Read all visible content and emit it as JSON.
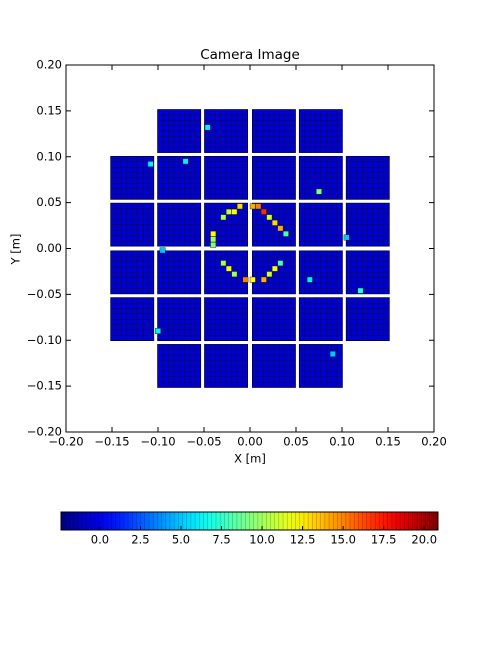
{
  "chart_data": {
    "type": "camera",
    "title": "Camera Image",
    "xlabel": "X [m]",
    "ylabel": "Y [m]",
    "xlim": [
      -0.2,
      0.2
    ],
    "ylim": [
      -0.2,
      0.2
    ],
    "xticks": [
      {
        "value": -0.2,
        "label": "−0.20"
      },
      {
        "value": -0.15,
        "label": "−0.15"
      },
      {
        "value": -0.1,
        "label": "−0.10"
      },
      {
        "value": -0.05,
        "label": "−0.05"
      },
      {
        "value": 0,
        "label": "0.00"
      },
      {
        "value": 0.05,
        "label": "0.05"
      },
      {
        "value": 0.1,
        "label": "0.10"
      },
      {
        "value": 0.15,
        "label": "0.15"
      },
      {
        "value": 0.2,
        "label": "0.20"
      }
    ],
    "yticks": [
      {
        "value": -0.2,
        "label": "−0.20"
      },
      {
        "value": -0.15,
        "label": "−0.15"
      },
      {
        "value": -0.1,
        "label": "−0.10"
      },
      {
        "value": -0.05,
        "label": "−0.05"
      },
      {
        "value": 0,
        "label": "0.00"
      },
      {
        "value": 0.05,
        "label": "0.05"
      },
      {
        "value": 0.1,
        "label": "0.10"
      },
      {
        "value": 0.15,
        "label": "0.15"
      },
      {
        "value": 0.2,
        "label": "0.20"
      }
    ],
    "module_size": 0.047,
    "pixels_per_side": 8,
    "modules": {
      "x": [
        -0.077,
        -0.026,
        0.026,
        0.077,
        -0.128,
        -0.077,
        -0.026,
        0.026,
        0.077,
        0.128,
        -0.128,
        -0.077,
        -0.026,
        0.026,
        0.077,
        0.128,
        -0.128,
        -0.077,
        -0.026,
        0.026,
        0.077,
        0.128,
        -0.128,
        -0.077,
        -0.026,
        0.026,
        0.077,
        0.128,
        -0.077,
        -0.026,
        0.026,
        0.077
      ],
      "y": [
        0.128,
        0.128,
        0.128,
        0.128,
        0.077,
        0.077,
        0.077,
        0.077,
        0.077,
        0.077,
        0.026,
        0.026,
        0.026,
        0.026,
        0.026,
        0.026,
        -0.026,
        -0.026,
        -0.026,
        -0.026,
        -0.026,
        -0.026,
        -0.077,
        -0.077,
        -0.077,
        -0.077,
        -0.077,
        -0.077,
        -0.128,
        -0.128,
        -0.128,
        -0.128
      ],
      "values": [
        -0.5,
        -0.5,
        -0.5,
        -0.5,
        -0.5,
        -0.5,
        -0.5,
        -0.5,
        -0.5,
        -0.5,
        -0.5,
        -0.5,
        -0.5,
        -0.5,
        -0.5,
        -0.5,
        -0.5,
        -0.5,
        -0.5,
        -0.5,
        -0.5,
        -0.5,
        -0.5,
        -0.5,
        -0.5,
        -0.5,
        -0.5,
        -0.5,
        -0.5,
        -0.5,
        -0.5,
        -0.5
      ]
    },
    "hot_pixels": {
      "x": [
        -0.011,
        -0.017,
        -0.023,
        -0.029,
        0.003,
        0.009,
        0.015,
        0.021,
        0.027,
        0.033,
        0.039,
        -0.04,
        -0.04,
        -0.04,
        -0.029,
        -0.023,
        -0.017,
        -0.005,
        0.003,
        0.015,
        0.021,
        0.027,
        0.033,
        -0.108,
        0.075,
        -0.095,
        0.065,
        0.12,
        -0.046,
        0.105,
        -0.1,
        0.09,
        -0.07
      ],
      "y": [
        0.046,
        0.04,
        0.04,
        0.034,
        0.046,
        0.046,
        0.04,
        0.034,
        0.028,
        0.022,
        0.016,
        0.016,
        0.01,
        0.004,
        -0.016,
        -0.022,
        -0.028,
        -0.034,
        -0.034,
        -0.034,
        -0.028,
        -0.022,
        -0.016,
        0.092,
        0.062,
        -0.002,
        -0.034,
        -0.046,
        0.132,
        0.012,
        -0.09,
        -0.115,
        0.095
      ],
      "values": [
        13,
        12,
        11,
        10,
        14,
        15,
        17,
        11,
        13,
        14,
        8,
        12,
        10,
        9,
        10,
        12,
        10,
        15,
        12,
        14,
        11,
        12,
        8,
        6,
        9,
        5,
        6,
        7,
        6,
        5,
        6,
        5,
        6
      ]
    },
    "clim": [
      -2.4,
      20.85
    ],
    "cticks": [
      {
        "value": 0,
        "label": "0.0"
      },
      {
        "value": 2.5,
        "label": "2.5"
      },
      {
        "value": 5,
        "label": "5.0"
      },
      {
        "value": 7.5,
        "label": "7.5"
      },
      {
        "value": 10,
        "label": "10.0"
      },
      {
        "value": 12.5,
        "label": "12.5"
      },
      {
        "value": 15,
        "label": "15.0"
      },
      {
        "value": 17.5,
        "label": "17.5"
      },
      {
        "value": 20,
        "label": "20.0"
      }
    ]
  }
}
